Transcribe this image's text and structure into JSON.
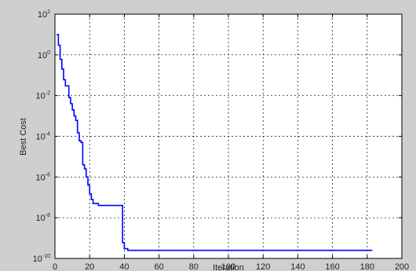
{
  "chart_data": {
    "type": "line",
    "title": "",
    "xlabel": "Iteration",
    "ylabel": "Best Cost",
    "xlim": [
      0,
      200
    ],
    "ylim": [
      1e-10,
      100
    ],
    "yscale": "log",
    "grid": true,
    "x_ticks": [
      "0",
      "20",
      "40",
      "60",
      "80",
      "100",
      "120",
      "140",
      "160",
      "180",
      "200"
    ],
    "y_ticks": [
      {
        "base": "10",
        "exp": "2",
        "value": 100
      },
      {
        "base": "10",
        "exp": "0",
        "value": 1
      },
      {
        "base": "10",
        "exp": "-2",
        "value": 0.01
      },
      {
        "base": "10",
        "exp": "-4",
        "value": 0.0001
      },
      {
        "base": "10",
        "exp": "-6",
        "value": 1e-06
      },
      {
        "base": "10",
        "exp": "-8",
        "value": 1e-08
      },
      {
        "base": "10",
        "exp": "-10",
        "value": 1e-10
      }
    ],
    "series": [
      {
        "color": "#0000ff",
        "x": [
          1,
          2,
          3,
          4,
          5,
          6,
          7,
          8,
          9,
          10,
          11,
          12,
          13,
          14,
          15,
          16,
          17,
          18,
          19,
          20,
          21,
          22,
          25,
          30,
          38,
          39,
          40,
          42,
          45,
          50,
          60,
          80,
          100,
          120,
          140,
          160,
          183
        ],
        "y": [
          10,
          3,
          0.6,
          0.2,
          0.06,
          0.03,
          0.03,
          0.008,
          0.004,
          0.002,
          0.001,
          0.0006,
          0.00015,
          6e-05,
          5e-05,
          4e-06,
          2.5e-06,
          1e-06,
          4e-07,
          1.5e-07,
          8e-08,
          5e-08,
          4e-08,
          4e-08,
          4e-08,
          6e-10,
          3e-10,
          2.5e-10,
          2.5e-10,
          2.5e-10,
          2.5e-10,
          2.5e-10,
          2.5e-10,
          2.5e-10,
          2.5e-10,
          2.5e-10,
          2.5e-10
        ]
      }
    ]
  }
}
